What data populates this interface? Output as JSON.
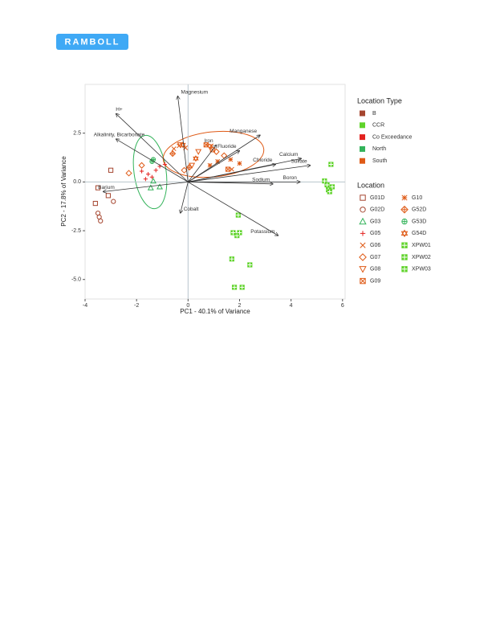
{
  "logo": "RAMBOLL",
  "chart_data": {
    "type": "scatter",
    "x_label": "PC1 - 40.1% of Variance",
    "y_label": "PC2 - 17.8% of Variance",
    "xlim": [
      -4.0,
      6.1
    ],
    "ylim": [
      -6.0,
      5.0
    ],
    "xticks": [
      -4,
      -2,
      0,
      2,
      4,
      6
    ],
    "yticks": [
      {
        "value": -5,
        "label": "-5.0"
      },
      {
        "value": -2.5,
        "label": "-2.5"
      },
      {
        "value": 0,
        "label": "0.0"
      },
      2.5
    ],
    "location_type_title": "Location Type",
    "location_types": [
      {
        "name": "B",
        "color": "#a5452f"
      },
      {
        "name": "CCR",
        "color": "#5fd32a"
      },
      {
        "name": "Co Exceedance",
        "color": "#e3221f"
      },
      {
        "name": "North",
        "color": "#33b35a"
      },
      {
        "name": "South",
        "color": "#df5a16"
      }
    ],
    "location_title": "Location",
    "series": [
      {
        "name": "G01D",
        "marker": "square",
        "color": "#a5452f",
        "x": [
          -3.6,
          -3.5,
          -3.0,
          -3.1
        ],
        "y": [
          -1.1,
          -0.3,
          0.6,
          -0.7
        ]
      },
      {
        "name": "G02D",
        "marker": "circle",
        "color": "#a5452f",
        "x": [
          -3.5,
          -3.45,
          -3.4,
          -2.9
        ],
        "y": [
          -1.6,
          -1.8,
          -2.0,
          -1.0
        ]
      },
      {
        "name": "G03",
        "marker": "triangle",
        "color": "#33b35a",
        "x": [
          -1.45,
          -1.1,
          -1.35
        ],
        "y": [
          -0.3,
          -0.25,
          0.05
        ]
      },
      {
        "name": "G05",
        "marker": "plus",
        "color": "#e3221f",
        "x": [
          -1.8,
          -1.55,
          -1.25,
          -1.1,
          -0.9,
          -1.65,
          -1.4
        ],
        "y": [
          0.55,
          0.4,
          0.6,
          0.8,
          0.9,
          0.15,
          0.25
        ]
      },
      {
        "name": "G06",
        "marker": "x",
        "color": "#df5a16",
        "x": [
          -0.55,
          -0.35,
          -0.1,
          0.9,
          1.7
        ],
        "y": [
          1.7,
          1.85,
          1.75,
          1.85,
          0.65
        ]
      },
      {
        "name": "G07",
        "marker": "diamond",
        "color": "#df5a16",
        "x": [
          -2.3,
          -1.8,
          1.1,
          1.4,
          -0.15
        ],
        "y": [
          0.45,
          0.85,
          1.55,
          1.35,
          0.6
        ]
      },
      {
        "name": "G08",
        "marker": "triangle-down",
        "color": "#df5a16",
        "x": [
          -0.3,
          0.4,
          0.15,
          0.85
        ],
        "y": [
          1.9,
          1.55,
          0.85,
          1.8
        ]
      },
      {
        "name": "G09",
        "marker": "box-x",
        "color": "#df5a16",
        "x": [
          0.7,
          0.95,
          1.55
        ],
        "y": [
          1.9,
          1.65,
          0.65
        ]
      },
      {
        "name": "G10",
        "marker": "asterisk",
        "color": "#df5a16",
        "x": [
          1.15,
          1.65,
          2.0,
          0.85
        ],
        "y": [
          1.05,
          1.15,
          0.95,
          0.85
        ]
      },
      {
        "name": "G52D",
        "marker": "diamond-plus",
        "color": "#df5a16",
        "x": [
          0.05,
          -0.6
        ],
        "y": [
          0.75,
          1.45
        ]
      },
      {
        "name": "G53D",
        "marker": "circle-plus",
        "color": "#33b35a",
        "x": [
          -1.4,
          -1.35
        ],
        "y": [
          1.05,
          1.15
        ]
      },
      {
        "name": "G54D",
        "marker": "star",
        "color": "#df5a16",
        "x": [
          -0.2,
          0.3
        ],
        "y": [
          1.9,
          1.2
        ]
      },
      {
        "name": "XPW01",
        "marker": "box-plus",
        "color": "#5fd32a",
        "x": [
          5.55,
          5.4,
          5.45,
          5.6,
          5.3,
          5.5
        ],
        "y": [
          0.9,
          -0.15,
          -0.4,
          -0.25,
          0.05,
          -0.5
        ]
      },
      {
        "name": "XPW02",
        "marker": "box-plus",
        "color": "#5fd32a",
        "x": [
          1.95,
          1.75,
          1.9,
          2.0,
          1.7
        ],
        "y": [
          -1.7,
          -2.6,
          -2.75,
          -2.6,
          -3.95
        ]
      },
      {
        "name": "XPW03",
        "marker": "box-plus",
        "color": "#5fd32a",
        "x": [
          2.4,
          1.8,
          2.1
        ],
        "y": [
          -4.25,
          -5.4,
          -5.4
        ]
      }
    ],
    "loadings": [
      {
        "label": "H+",
        "x": -2.8,
        "y": 3.5
      },
      {
        "label": "Magnesium",
        "x": -0.4,
        "y": 4.4
      },
      {
        "label": "Alkalinity, Bicarbonate",
        "x": -2.8,
        "y": 2.2
      },
      {
        "label": "Barium",
        "x": -3.3,
        "y": -0.5
      },
      {
        "label": "Cobalt",
        "x": -0.3,
        "y": -1.6
      },
      {
        "label": "Iron",
        "x": 1.1,
        "y": 1.9
      },
      {
        "label": "Manganese",
        "x": 2.8,
        "y": 2.4
      },
      {
        "label": "Fluoride",
        "x": 2.0,
        "y": 1.6
      },
      {
        "label": "Calcium",
        "x": 4.4,
        "y": 1.2
      },
      {
        "label": "Chloride",
        "x": 3.4,
        "y": 0.9
      },
      {
        "label": "Sulfate",
        "x": 4.75,
        "y": 0.85
      },
      {
        "label": "Boron",
        "x": 4.35,
        "y": 0.0
      },
      {
        "label": "Sodium",
        "x": 3.3,
        "y": -0.1
      },
      {
        "label": "Potassium",
        "x": 3.5,
        "y": -2.75
      }
    ]
  }
}
